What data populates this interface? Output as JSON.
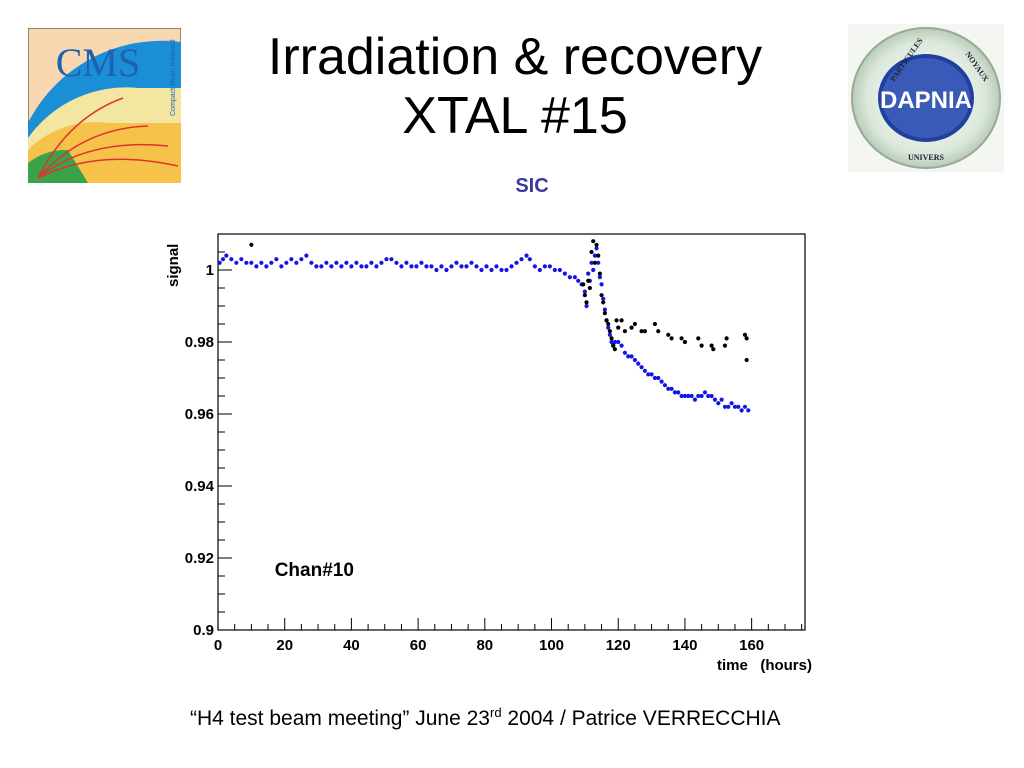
{
  "slide": {
    "title_line1": "Irradiation & recovery",
    "title_line2": "XTAL #15",
    "subtitle": "SIC",
    "footer_part1": "“H4 test beam meeting”   June 23",
    "footer_sup": "rd",
    "footer_part2": " 2004 / Patrice VERRECCHIA"
  },
  "logos": {
    "cms_text": "CMS",
    "cms_side_text": "Compact Muon Solenoid",
    "dapnia_text": "DAPNIA",
    "dapnia_ring_top": "PARTICULES",
    "dapnia_ring_right": "NOYAUX",
    "dapnia_ring_bottom": "UNIVERS"
  },
  "colors": {
    "blue_series": "#1414e6",
    "black_series": "#000000",
    "subtitle": "#3a3aa0",
    "cms_bg": "#f8d8b0",
    "cms_blue": "#1a8fd6"
  },
  "chart_data": {
    "type": "scatter",
    "title": "",
    "xlabel": "time   (hours)",
    "ylabel": "signal",
    "xlim": [
      0,
      176
    ],
    "ylim": [
      0.9,
      1.01
    ],
    "xticks": [
      0,
      20,
      40,
      60,
      80,
      100,
      120,
      140,
      160
    ],
    "yticks": [
      0.9,
      0.92,
      0.94,
      0.96,
      0.98,
      1
    ],
    "ytick_labels": [
      "0.9",
      "0.92",
      "0.94",
      "0.96",
      "0.98",
      "1"
    ],
    "annotation": "Chan#10",
    "grid": false,
    "series": [
      {
        "color": "#1414e6",
        "points": [
          [
            0.5,
            1.002
          ],
          [
            1.5,
            1.003
          ],
          [
            2.5,
            1.004
          ],
          [
            4,
            1.003
          ],
          [
            5.5,
            1.002
          ],
          [
            7,
            1.003
          ],
          [
            8.5,
            1.002
          ],
          [
            10,
            1.002
          ],
          [
            11.5,
            1.001
          ],
          [
            13,
            1.002
          ],
          [
            14.5,
            1.001
          ],
          [
            16,
            1.002
          ],
          [
            17.5,
            1.003
          ],
          [
            19,
            1.001
          ],
          [
            20.5,
            1.002
          ],
          [
            22,
            1.003
          ],
          [
            23.5,
            1.002
          ],
          [
            25,
            1.003
          ],
          [
            26.5,
            1.004
          ],
          [
            28,
            1.002
          ],
          [
            29.5,
            1.001
          ],
          [
            31,
            1.001
          ],
          [
            32.5,
            1.002
          ],
          [
            34,
            1.001
          ],
          [
            35.5,
            1.002
          ],
          [
            37,
            1.001
          ],
          [
            38.5,
            1.002
          ],
          [
            40,
            1.001
          ],
          [
            41.5,
            1.002
          ],
          [
            43,
            1.001
          ],
          [
            44.5,
            1.001
          ],
          [
            46,
            1.002
          ],
          [
            47.5,
            1.001
          ],
          [
            49,
            1.002
          ],
          [
            50.5,
            1.003
          ],
          [
            52,
            1.003
          ],
          [
            53.5,
            1.002
          ],
          [
            55,
            1.001
          ],
          [
            56.5,
            1.002
          ],
          [
            58,
            1.001
          ],
          [
            59.5,
            1.001
          ],
          [
            61,
            1.002
          ],
          [
            62.5,
            1.001
          ],
          [
            64,
            1.001
          ],
          [
            65.5,
            1.0
          ],
          [
            67,
            1.001
          ],
          [
            68.5,
            1.0
          ],
          [
            70,
            1.001
          ],
          [
            71.5,
            1.002
          ],
          [
            73,
            1.001
          ],
          [
            74.5,
            1.001
          ],
          [
            76,
            1.002
          ],
          [
            77.5,
            1.001
          ],
          [
            79,
            1.0
          ],
          [
            80.5,
            1.001
          ],
          [
            82,
            1.0
          ],
          [
            83.5,
            1.001
          ],
          [
            85,
            1.0
          ],
          [
            86.5,
            1.0
          ],
          [
            88,
            1.001
          ],
          [
            89.5,
            1.002
          ],
          [
            91,
            1.003
          ],
          [
            92.5,
            1.004
          ],
          [
            93.5,
            1.003
          ],
          [
            95,
            1.001
          ],
          [
            96.5,
            1.0
          ],
          [
            98,
            1.001
          ],
          [
            99.5,
            1.001
          ],
          [
            101,
            1.0
          ],
          [
            102.5,
            1.0
          ],
          [
            104,
            0.999
          ],
          [
            105.5,
            0.998
          ],
          [
            107,
            0.998
          ],
          [
            108,
            0.997
          ],
          [
            109,
            0.996
          ],
          [
            110,
            0.994
          ],
          [
            110.5,
            0.99
          ],
          [
            111,
            0.999
          ],
          [
            111.5,
            0.997
          ],
          [
            112,
            1.002
          ],
          [
            112.5,
            1.0
          ],
          [
            113,
            1.004
          ],
          [
            113.5,
            1.006
          ],
          [
            114,
            1.002
          ],
          [
            114.5,
            0.998
          ],
          [
            115,
            0.996
          ],
          [
            115.5,
            0.992
          ],
          [
            116,
            0.989
          ],
          [
            116.5,
            0.986
          ],
          [
            117,
            0.984
          ],
          [
            117.5,
            0.982
          ],
          [
            118,
            0.98
          ],
          [
            118.5,
            0.979
          ],
          [
            119,
            0.98
          ],
          [
            120,
            0.98
          ],
          [
            121,
            0.979
          ],
          [
            122,
            0.977
          ],
          [
            123,
            0.976
          ],
          [
            124,
            0.976
          ],
          [
            125,
            0.975
          ],
          [
            126,
            0.974
          ],
          [
            127,
            0.973
          ],
          [
            128,
            0.972
          ],
          [
            129,
            0.971
          ],
          [
            130,
            0.971
          ],
          [
            131,
            0.97
          ],
          [
            132,
            0.97
          ],
          [
            133,
            0.969
          ],
          [
            134,
            0.968
          ],
          [
            135,
            0.967
          ],
          [
            136,
            0.967
          ],
          [
            137,
            0.966
          ],
          [
            138,
            0.966
          ],
          [
            139,
            0.965
          ],
          [
            140,
            0.965
          ],
          [
            141,
            0.965
          ],
          [
            142,
            0.965
          ],
          [
            143,
            0.964
          ],
          [
            144,
            0.965
          ],
          [
            145,
            0.965
          ],
          [
            146,
            0.966
          ],
          [
            147,
            0.965
          ],
          [
            148,
            0.965
          ],
          [
            149,
            0.964
          ],
          [
            150,
            0.963
          ],
          [
            151,
            0.964
          ],
          [
            152,
            0.962
          ],
          [
            153,
            0.962
          ],
          [
            154,
            0.963
          ],
          [
            155,
            0.962
          ],
          [
            156,
            0.962
          ],
          [
            157,
            0.961
          ],
          [
            158,
            0.962
          ],
          [
            159,
            0.961
          ]
        ]
      },
      {
        "color": "#000000",
        "points": [
          [
            10,
            1.007
          ],
          [
            109.5,
            0.996
          ],
          [
            110,
            0.993
          ],
          [
            110.5,
            0.991
          ],
          [
            111,
            0.997
          ],
          [
            111.5,
            0.995
          ],
          [
            112,
            1.005
          ],
          [
            112.5,
            1.008
          ],
          [
            113,
            1.002
          ],
          [
            113.5,
            1.007
          ],
          [
            114,
            1.004
          ],
          [
            114.5,
            0.999
          ],
          [
            115,
            0.993
          ],
          [
            115.5,
            0.991
          ],
          [
            116,
            0.988
          ],
          [
            116.5,
            0.986
          ],
          [
            117,
            0.985
          ],
          [
            117.5,
            0.983
          ],
          [
            118,
            0.981
          ],
          [
            118.5,
            0.979
          ],
          [
            119,
            0.978
          ],
          [
            119.5,
            0.986
          ],
          [
            120,
            0.984
          ],
          [
            121,
            0.986
          ],
          [
            122,
            0.983
          ],
          [
            124,
            0.984
          ],
          [
            125,
            0.985
          ],
          [
            127,
            0.983
          ],
          [
            128,
            0.983
          ],
          [
            131,
            0.985
          ],
          [
            132,
            0.983
          ],
          [
            135,
            0.982
          ],
          [
            136,
            0.981
          ],
          [
            139,
            0.981
          ],
          [
            140,
            0.98
          ],
          [
            144,
            0.981
          ],
          [
            145,
            0.979
          ],
          [
            148,
            0.979
          ],
          [
            148.5,
            0.978
          ],
          [
            152,
            0.979
          ],
          [
            152.5,
            0.981
          ],
          [
            158,
            0.982
          ],
          [
            158.5,
            0.981
          ],
          [
            158.5,
            0.975
          ]
        ]
      }
    ]
  }
}
